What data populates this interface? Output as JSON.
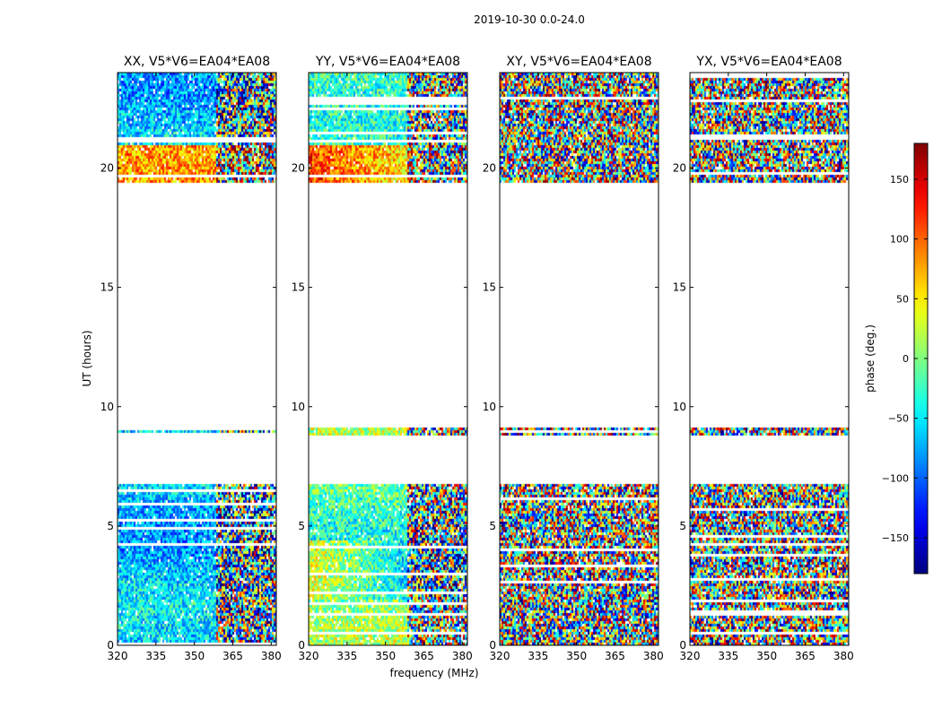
{
  "chart_data": {
    "type": "heatmap",
    "suptitle": "2019-10-30 0.0-24.0",
    "xlabel": "frequency (MHz)",
    "ylabel": "UT (hours)",
    "xlim": [
      320,
      382
    ],
    "ylim": [
      0,
      24
    ],
    "xticks": [
      320,
      335,
      350,
      365,
      380
    ],
    "yticks": [
      0,
      5,
      10,
      15,
      20
    ],
    "panels": [
      {
        "title": "XX, V5*V6=EA04*EA08",
        "pol": "XX"
      },
      {
        "title": "YY, V5*V6=EA04*EA08",
        "pol": "YY"
      },
      {
        "title": "XY, V5*V6=EA04*EA08",
        "pol": "XY"
      },
      {
        "title": "YX, V5*V6=EA04*EA08",
        "pol": "YX"
      }
    ],
    "data_bands_hours": [
      [
        0.0,
        6.8
      ],
      [
        8.8,
        9.2
      ],
      [
        19.4,
        24.0
      ]
    ],
    "colorbar": {
      "label": "phase (deg.)",
      "range": [
        -180,
        180
      ],
      "ticks": [
        -150,
        -100,
        -50,
        0,
        50,
        100,
        150
      ],
      "colormap": "jet"
    }
  }
}
